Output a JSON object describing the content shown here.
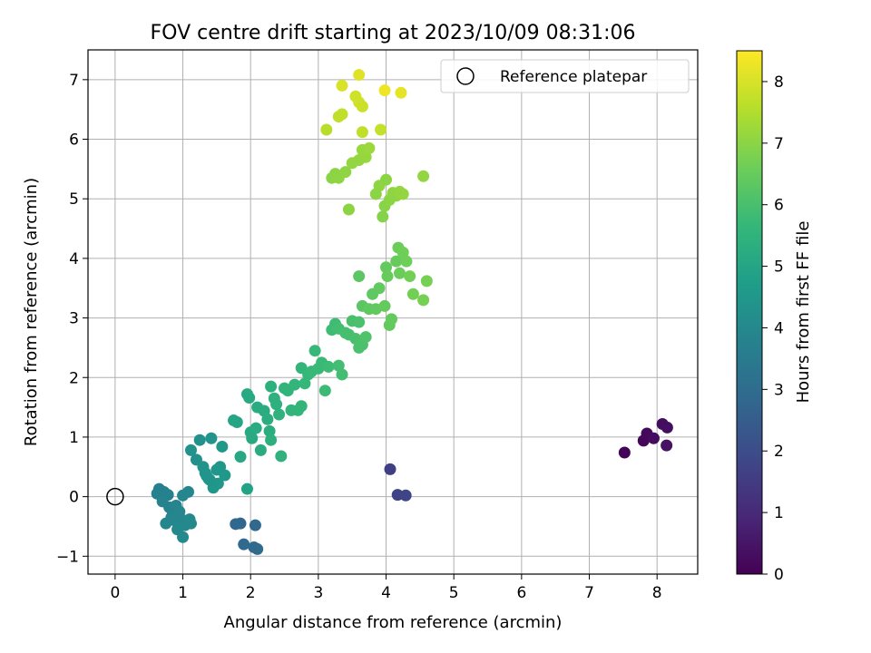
{
  "chart_data": {
    "type": "scatter",
    "title": "FOV centre drift starting at 2023/10/09 08:31:06",
    "xlabel": "Angular distance from reference (arcmin)",
    "ylabel": "Rotation from reference (arcmin)",
    "xlim": [
      -0.4,
      8.6
    ],
    "ylim": [
      -1.3,
      7.5
    ],
    "xticks": [
      "0",
      "1",
      "2",
      "3",
      "4",
      "5",
      "6",
      "7",
      "8"
    ],
    "yticks": [
      "−1",
      "0",
      "1",
      "2",
      "3",
      "4",
      "5",
      "6",
      "7"
    ],
    "grid": true,
    "legend": {
      "position": "top-right",
      "label": "Reference platepar"
    },
    "colorbar": {
      "label": "Hours from first FF file",
      "range": [
        0,
        8.5
      ],
      "ticks": [
        "0",
        "1",
        "2",
        "3",
        "4",
        "5",
        "6",
        "7",
        "8"
      ],
      "colormap": "viridis"
    },
    "reference_point": {
      "x": 0,
      "y": 0
    },
    "points": [
      {
        "x": 7.52,
        "y": 0.74,
        "c": 0.1
      },
      {
        "x": 7.8,
        "y": 0.94,
        "c": 0.15
      },
      {
        "x": 7.85,
        "y": 1.06,
        "c": 0.2
      },
      {
        "x": 7.95,
        "y": 0.98,
        "c": 0.25
      },
      {
        "x": 8.08,
        "y": 1.22,
        "c": 0.3
      },
      {
        "x": 8.15,
        "y": 1.16,
        "c": 0.35
      },
      {
        "x": 8.14,
        "y": 0.86,
        "c": 0.4
      },
      {
        "x": 4.06,
        "y": 0.46,
        "c": 1.6
      },
      {
        "x": 4.17,
        "y": 0.03,
        "c": 1.7
      },
      {
        "x": 4.29,
        "y": 0.02,
        "c": 1.75
      },
      {
        "x": 1.85,
        "y": -0.45,
        "c": 2.8
      },
      {
        "x": 1.78,
        "y": -0.46,
        "c": 2.82
      },
      {
        "x": 2.07,
        "y": -0.48,
        "c": 2.85
      },
      {
        "x": 1.9,
        "y": -0.8,
        "c": 2.9
      },
      {
        "x": 2.05,
        "y": -0.85,
        "c": 2.92
      },
      {
        "x": 2.1,
        "y": -0.88,
        "c": 2.95
      },
      {
        "x": 0.62,
        "y": 0.05,
        "c": 3.7
      },
      {
        "x": 0.65,
        "y": 0.13,
        "c": 3.7
      },
      {
        "x": 0.72,
        "y": 0.08,
        "c": 3.75
      },
      {
        "x": 0.78,
        "y": 0.03,
        "c": 3.75
      },
      {
        "x": 0.7,
        "y": -0.08,
        "c": 3.8
      },
      {
        "x": 0.8,
        "y": -0.18,
        "c": 3.8
      },
      {
        "x": 0.85,
        "y": -0.3,
        "c": 3.85
      },
      {
        "x": 0.9,
        "y": -0.15,
        "c": 3.85
      },
      {
        "x": 0.95,
        "y": -0.25,
        "c": 3.9
      },
      {
        "x": 0.98,
        "y": -0.38,
        "c": 3.9
      },
      {
        "x": 1.0,
        "y": 0.02,
        "c": 3.95
      },
      {
        "x": 1.08,
        "y": 0.08,
        "c": 3.95
      },
      {
        "x": 0.75,
        "y": -0.45,
        "c": 3.9
      },
      {
        "x": 0.88,
        "y": -0.4,
        "c": 3.95
      },
      {
        "x": 1.03,
        "y": -0.48,
        "c": 4.0
      },
      {
        "x": 1.1,
        "y": -0.38,
        "c": 4.0
      },
      {
        "x": 1.12,
        "y": -0.45,
        "c": 4.0
      },
      {
        "x": 1.0,
        "y": -0.68,
        "c": 4.05
      },
      {
        "x": 0.92,
        "y": -0.55,
        "c": 4.0
      },
      {
        "x": 0.83,
        "y": -0.35,
        "c": 3.9
      },
      {
        "x": 1.2,
        "y": 0.62,
        "c": 4.3
      },
      {
        "x": 1.25,
        "y": 0.95,
        "c": 4.3
      },
      {
        "x": 1.3,
        "y": 0.5,
        "c": 4.35
      },
      {
        "x": 1.33,
        "y": 0.4,
        "c": 4.35
      },
      {
        "x": 1.38,
        "y": 0.3,
        "c": 4.4
      },
      {
        "x": 1.42,
        "y": 0.98,
        "c": 4.4
      },
      {
        "x": 1.45,
        "y": 0.15,
        "c": 4.45
      },
      {
        "x": 1.5,
        "y": 0.45,
        "c": 4.45
      },
      {
        "x": 1.52,
        "y": 0.22,
        "c": 4.5
      },
      {
        "x": 1.55,
        "y": 0.5,
        "c": 4.5
      },
      {
        "x": 1.58,
        "y": 0.84,
        "c": 4.55
      },
      {
        "x": 1.62,
        "y": 0.36,
        "c": 4.55
      },
      {
        "x": 1.12,
        "y": 0.78,
        "c": 4.35
      },
      {
        "x": 1.35,
        "y": 0.35,
        "c": 4.4
      },
      {
        "x": 1.4,
        "y": 0.28,
        "c": 4.4
      },
      {
        "x": 1.75,
        "y": 1.28,
        "c": 5.0
      },
      {
        "x": 1.8,
        "y": 1.25,
        "c": 5.0
      },
      {
        "x": 1.85,
        "y": 0.67,
        "c": 5.05
      },
      {
        "x": 1.95,
        "y": 0.13,
        "c": 4.9
      },
      {
        "x": 1.95,
        "y": 1.72,
        "c": 5.1
      },
      {
        "x": 1.98,
        "y": 1.66,
        "c": 5.1
      },
      {
        "x": 2.0,
        "y": 1.08,
        "c": 5.15
      },
      {
        "x": 2.02,
        "y": 0.98,
        "c": 5.15
      },
      {
        "x": 2.08,
        "y": 1.15,
        "c": 5.2
      },
      {
        "x": 2.1,
        "y": 1.5,
        "c": 5.2
      },
      {
        "x": 2.15,
        "y": 0.78,
        "c": 5.25
      },
      {
        "x": 2.2,
        "y": 1.44,
        "c": 5.25
      },
      {
        "x": 2.25,
        "y": 1.3,
        "c": 5.3
      },
      {
        "x": 2.28,
        "y": 1.1,
        "c": 5.3
      },
      {
        "x": 2.3,
        "y": 0.95,
        "c": 5.35
      },
      {
        "x": 2.3,
        "y": 1.85,
        "c": 5.35
      },
      {
        "x": 2.35,
        "y": 1.65,
        "c": 5.4
      },
      {
        "x": 2.38,
        "y": 1.55,
        "c": 5.4
      },
      {
        "x": 2.42,
        "y": 1.38,
        "c": 5.45
      },
      {
        "x": 2.45,
        "y": 0.68,
        "c": 5.45
      },
      {
        "x": 2.5,
        "y": 1.82,
        "c": 5.5
      },
      {
        "x": 2.55,
        "y": 1.78,
        "c": 5.5
      },
      {
        "x": 2.6,
        "y": 1.45,
        "c": 5.55
      },
      {
        "x": 2.65,
        "y": 1.88,
        "c": 5.55
      },
      {
        "x": 2.7,
        "y": 1.45,
        "c": 5.6
      },
      {
        "x": 2.75,
        "y": 2.16,
        "c": 5.6
      },
      {
        "x": 2.75,
        "y": 1.52,
        "c": 5.6
      },
      {
        "x": 2.8,
        "y": 1.9,
        "c": 5.65
      },
      {
        "x": 2.85,
        "y": 2.05,
        "c": 5.65
      },
      {
        "x": 2.9,
        "y": 2.1,
        "c": 5.7
      },
      {
        "x": 2.95,
        "y": 2.45,
        "c": 5.7
      },
      {
        "x": 3.0,
        "y": 2.15,
        "c": 5.75
      },
      {
        "x": 3.05,
        "y": 2.25,
        "c": 5.75
      },
      {
        "x": 3.1,
        "y": 1.78,
        "c": 5.8
      },
      {
        "x": 3.15,
        "y": 2.18,
        "c": 5.8
      },
      {
        "x": 3.2,
        "y": 2.8,
        "c": 5.85
      },
      {
        "x": 3.25,
        "y": 2.9,
        "c": 5.85
      },
      {
        "x": 3.3,
        "y": 2.2,
        "c": 5.9
      },
      {
        "x": 3.3,
        "y": 2.82,
        "c": 5.9
      },
      {
        "x": 3.35,
        "y": 2.05,
        "c": 5.9
      },
      {
        "x": 3.4,
        "y": 2.75,
        "c": 5.95
      },
      {
        "x": 3.45,
        "y": 2.72,
        "c": 5.95
      },
      {
        "x": 3.5,
        "y": 2.95,
        "c": 6.0
      },
      {
        "x": 3.55,
        "y": 2.65,
        "c": 6.0
      },
      {
        "x": 3.6,
        "y": 2.5,
        "c": 6.05
      },
      {
        "x": 3.65,
        "y": 2.55,
        "c": 6.05
      },
      {
        "x": 3.6,
        "y": 2.93,
        "c": 6.05
      },
      {
        "x": 3.7,
        "y": 2.68,
        "c": 6.1
      },
      {
        "x": 3.6,
        "y": 3.7,
        "c": 6.3
      },
      {
        "x": 3.65,
        "y": 3.2,
        "c": 6.3
      },
      {
        "x": 3.75,
        "y": 3.15,
        "c": 6.35
      },
      {
        "x": 3.8,
        "y": 3.4,
        "c": 6.35
      },
      {
        "x": 3.85,
        "y": 3.15,
        "c": 6.4
      },
      {
        "x": 3.9,
        "y": 3.5,
        "c": 6.4
      },
      {
        "x": 3.98,
        "y": 3.2,
        "c": 6.45
      },
      {
        "x": 4.0,
        "y": 3.85,
        "c": 6.45
      },
      {
        "x": 4.02,
        "y": 3.7,
        "c": 6.5
      },
      {
        "x": 4.05,
        "y": 2.88,
        "c": 6.4
      },
      {
        "x": 4.08,
        "y": 2.98,
        "c": 6.45
      },
      {
        "x": 4.15,
        "y": 3.95,
        "c": 6.5
      },
      {
        "x": 4.18,
        "y": 4.18,
        "c": 6.55
      },
      {
        "x": 4.2,
        "y": 3.75,
        "c": 6.55
      },
      {
        "x": 4.25,
        "y": 4.1,
        "c": 6.6
      },
      {
        "x": 4.3,
        "y": 3.95,
        "c": 6.6
      },
      {
        "x": 4.35,
        "y": 3.7,
        "c": 6.65
      },
      {
        "x": 4.4,
        "y": 3.4,
        "c": 6.65
      },
      {
        "x": 4.55,
        "y": 3.3,
        "c": 6.7
      },
      {
        "x": 4.6,
        "y": 3.62,
        "c": 6.7
      },
      {
        "x": 3.2,
        "y": 5.35,
        "c": 7.0
      },
      {
        "x": 3.25,
        "y": 5.42,
        "c": 7.0
      },
      {
        "x": 3.3,
        "y": 5.35,
        "c": 7.05
      },
      {
        "x": 3.4,
        "y": 5.45,
        "c": 7.05
      },
      {
        "x": 3.45,
        "y": 4.82,
        "c": 7.0
      },
      {
        "x": 3.5,
        "y": 5.6,
        "c": 7.1
      },
      {
        "x": 3.6,
        "y": 5.65,
        "c": 7.1
      },
      {
        "x": 3.65,
        "y": 5.82,
        "c": 7.15
      },
      {
        "x": 3.7,
        "y": 5.7,
        "c": 7.15
      },
      {
        "x": 3.75,
        "y": 5.85,
        "c": 7.2
      },
      {
        "x": 3.85,
        "y": 5.08,
        "c": 7.0
      },
      {
        "x": 3.9,
        "y": 5.22,
        "c": 7.05
      },
      {
        "x": 3.95,
        "y": 4.7,
        "c": 6.9
      },
      {
        "x": 3.98,
        "y": 4.88,
        "c": 6.95
      },
      {
        "x": 4.0,
        "y": 5.32,
        "c": 7.0
      },
      {
        "x": 4.05,
        "y": 4.98,
        "c": 7.0
      },
      {
        "x": 4.1,
        "y": 5.1,
        "c": 7.05
      },
      {
        "x": 4.15,
        "y": 5.05,
        "c": 7.05
      },
      {
        "x": 4.2,
        "y": 5.12,
        "c": 7.1
      },
      {
        "x": 4.25,
        "y": 5.08,
        "c": 7.1
      },
      {
        "x": 4.55,
        "y": 5.38,
        "c": 7.1
      },
      {
        "x": 3.12,
        "y": 6.16,
        "c": 7.6
      },
      {
        "x": 3.3,
        "y": 6.38,
        "c": 7.7
      },
      {
        "x": 3.35,
        "y": 6.42,
        "c": 7.7
      },
      {
        "x": 3.35,
        "y": 6.9,
        "c": 8.0
      },
      {
        "x": 3.55,
        "y": 6.72,
        "c": 7.9
      },
      {
        "x": 3.6,
        "y": 6.62,
        "c": 7.9
      },
      {
        "x": 3.65,
        "y": 6.55,
        "c": 7.85
      },
      {
        "x": 3.6,
        "y": 7.08,
        "c": 8.1
      },
      {
        "x": 3.65,
        "y": 6.12,
        "c": 7.7
      },
      {
        "x": 3.92,
        "y": 6.16,
        "c": 7.75
      },
      {
        "x": 3.98,
        "y": 6.82,
        "c": 8.3
      },
      {
        "x": 4.22,
        "y": 6.78,
        "c": 8.2
      }
    ]
  }
}
